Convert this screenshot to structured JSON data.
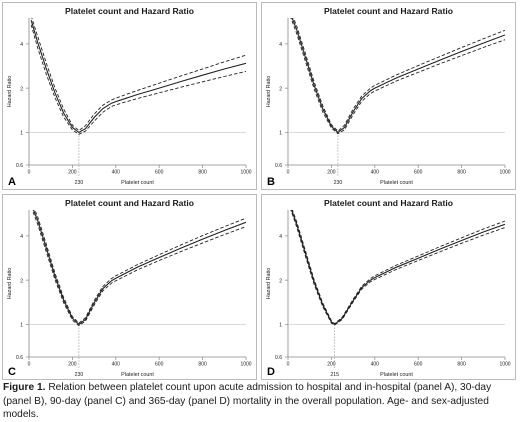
{
  "caption": {
    "label": "Figure 1.",
    "text": "Relation between platelet count upon acute admission to hospital and in-hospital (panel A), 30-day (panel B), 90-day (panel C) and 365-day (panel D) mortality in the overall population. Age- and sex-adjusted models."
  },
  "colors": {
    "curve": "#222222",
    "reference": "#9a9a9a",
    "frame": "#bbbbbb",
    "text": "#1a1a1a"
  },
  "chart_data": [
    {
      "panel": "A",
      "type": "line",
      "title": "Platelet count and Hazard Ratio",
      "xlabel": "Platelet count",
      "ylabel": "Hazard Ratio",
      "x_scale": "linear",
      "y_scale": "log",
      "xlim": [
        0,
        1000
      ],
      "ylim": [
        0.6,
        6
      ],
      "xticks": [
        0,
        200,
        400,
        600,
        800,
        1000
      ],
      "yticks": [
        0.6,
        1,
        2,
        4
      ],
      "optimum_x": 230,
      "optimum_label": "230",
      "reference_hr": 1,
      "series": [
        {
          "role": "estimate",
          "style": "solid",
          "x": [
            10,
            40,
            80,
            120,
            160,
            200,
            230,
            260,
            300,
            340,
            380,
            400,
            500,
            600,
            700,
            800,
            900,
            1000
          ],
          "values": [
            5.8,
            4.1,
            2.7,
            1.85,
            1.35,
            1.08,
            1.0,
            1.06,
            1.26,
            1.45,
            1.58,
            1.62,
            1.81,
            2.0,
            2.22,
            2.45,
            2.7,
            2.95
          ]
        },
        {
          "role": "upper_95ci",
          "style": "dashed",
          "x": [
            10,
            40,
            80,
            120,
            160,
            200,
            230,
            260,
            300,
            340,
            380,
            400,
            500,
            600,
            700,
            800,
            900,
            1000
          ],
          "values": [
            6.2,
            4.5,
            2.95,
            2.0,
            1.44,
            1.12,
            1.03,
            1.11,
            1.33,
            1.53,
            1.66,
            1.71,
            1.93,
            2.16,
            2.42,
            2.7,
            3.02,
            3.35
          ]
        },
        {
          "role": "lower_95ci",
          "style": "dashed",
          "x": [
            10,
            40,
            80,
            120,
            160,
            200,
            230,
            260,
            300,
            340,
            380,
            400,
            500,
            600,
            700,
            800,
            900,
            1000
          ],
          "values": [
            5.4,
            3.75,
            2.48,
            1.72,
            1.27,
            1.04,
            0.97,
            1.02,
            1.19,
            1.37,
            1.5,
            1.54,
            1.7,
            1.86,
            2.03,
            2.21,
            2.4,
            2.6
          ]
        }
      ]
    },
    {
      "panel": "B",
      "type": "line",
      "title": "Platelet count and Hazard Ratio",
      "xlabel": "Platelet count",
      "ylabel": "Hazard Ratio",
      "x_scale": "linear",
      "y_scale": "log",
      "xlim": [
        0,
        1000
      ],
      "ylim": [
        0.6,
        6
      ],
      "xticks": [
        0,
        200,
        400,
        600,
        800,
        1000
      ],
      "yticks": [
        0.6,
        1,
        2,
        4
      ],
      "optimum_x": 230,
      "optimum_label": "230",
      "reference_hr": 1,
      "series": [
        {
          "role": "estimate",
          "style": "solid",
          "x": [
            10,
            40,
            80,
            120,
            160,
            200,
            230,
            260,
            300,
            340,
            380,
            400,
            500,
            600,
            700,
            800,
            900,
            1000
          ],
          "values": [
            6.5,
            5.0,
            3.25,
            2.1,
            1.45,
            1.1,
            1.0,
            1.08,
            1.38,
            1.7,
            1.92,
            2.0,
            2.35,
            2.7,
            3.1,
            3.55,
            4.05,
            4.6
          ]
        },
        {
          "role": "upper_95ci",
          "style": "dashed",
          "x": [
            10,
            40,
            80,
            120,
            160,
            200,
            230,
            260,
            300,
            340,
            380,
            400,
            500,
            600,
            700,
            800,
            900,
            1000
          ],
          "values": [
            6.8,
            5.3,
            3.45,
            2.22,
            1.52,
            1.13,
            1.02,
            1.12,
            1.44,
            1.77,
            2.0,
            2.09,
            2.46,
            2.85,
            3.28,
            3.78,
            4.33,
            4.95
          ]
        },
        {
          "role": "lower_95ci",
          "style": "dashed",
          "x": [
            10,
            40,
            80,
            120,
            160,
            200,
            230,
            260,
            300,
            340,
            380,
            400,
            500,
            600,
            700,
            800,
            900,
            1000
          ],
          "values": [
            6.2,
            4.7,
            3.05,
            1.98,
            1.38,
            1.07,
            0.98,
            1.04,
            1.32,
            1.63,
            1.84,
            1.91,
            2.24,
            2.56,
            2.93,
            3.33,
            3.78,
            4.27
          ]
        }
      ]
    },
    {
      "panel": "C",
      "type": "line",
      "title": "Platelet count and Hazard Ratio",
      "xlabel": "Platelet count",
      "ylabel": "Hazard Ratio",
      "x_scale": "linear",
      "y_scale": "log",
      "xlim": [
        0,
        1000
      ],
      "ylim": [
        0.6,
        6
      ],
      "xticks": [
        0,
        200,
        400,
        600,
        800,
        1000
      ],
      "yticks": [
        0.6,
        1,
        2,
        4
      ],
      "optimum_x": 230,
      "optimum_label": "230",
      "reference_hr": 1,
      "series": [
        {
          "role": "estimate",
          "style": "solid",
          "x": [
            10,
            40,
            80,
            120,
            160,
            200,
            230,
            260,
            300,
            340,
            380,
            400,
            500,
            600,
            700,
            800,
            900,
            1000
          ],
          "values": [
            6.6,
            5.1,
            3.3,
            2.12,
            1.46,
            1.1,
            1.0,
            1.08,
            1.4,
            1.75,
            1.98,
            2.06,
            2.45,
            2.85,
            3.3,
            3.8,
            4.35,
            4.95
          ]
        },
        {
          "role": "upper_95ci",
          "style": "dashed",
          "x": [
            10,
            40,
            80,
            120,
            160,
            200,
            230,
            260,
            300,
            340,
            380,
            400,
            500,
            600,
            700,
            800,
            900,
            1000
          ],
          "values": [
            6.9,
            5.4,
            3.5,
            2.23,
            1.52,
            1.13,
            1.02,
            1.11,
            1.45,
            1.81,
            2.05,
            2.14,
            2.55,
            2.98,
            3.47,
            4.02,
            4.62,
            5.28
          ]
        },
        {
          "role": "lower_95ci",
          "style": "dashed",
          "x": [
            10,
            40,
            80,
            120,
            160,
            200,
            230,
            260,
            300,
            340,
            380,
            400,
            500,
            600,
            700,
            800,
            900,
            1000
          ],
          "values": [
            6.3,
            4.8,
            3.1,
            2.01,
            1.4,
            1.07,
            0.98,
            1.05,
            1.35,
            1.69,
            1.91,
            1.98,
            2.35,
            2.72,
            3.13,
            3.58,
            4.08,
            4.63
          ]
        }
      ]
    },
    {
      "panel": "D",
      "type": "line",
      "title": "Platelet count and Hazard Ratio",
      "xlabel": "Platelet count",
      "ylabel": "Hazard Ratio",
      "x_scale": "linear",
      "y_scale": "log",
      "xlim": [
        0,
        1000
      ],
      "ylim": [
        0.6,
        6
      ],
      "xticks": [
        0,
        200,
        400,
        600,
        800,
        1000
      ],
      "yticks": [
        0.6,
        1,
        2,
        4
      ],
      "optimum_x": 215,
      "optimum_label": "215",
      "reference_hr": 1,
      "series": [
        {
          "role": "estimate",
          "style": "solid",
          "x": [
            10,
            40,
            80,
            120,
            160,
            200,
            215,
            250,
            300,
            340,
            380,
            400,
            500,
            600,
            700,
            800,
            900,
            1000
          ],
          "values": [
            6.4,
            4.8,
            3.05,
            1.95,
            1.36,
            1.04,
            1.0,
            1.1,
            1.45,
            1.78,
            2.0,
            2.08,
            2.45,
            2.82,
            3.25,
            3.72,
            4.25,
            4.8
          ]
        },
        {
          "role": "upper_95ci",
          "style": "dashed",
          "x": [
            10,
            40,
            80,
            120,
            160,
            200,
            215,
            250,
            300,
            340,
            380,
            400,
            500,
            600,
            700,
            800,
            900,
            1000
          ],
          "values": [
            6.6,
            5.0,
            3.18,
            2.02,
            1.4,
            1.06,
            1.01,
            1.12,
            1.48,
            1.82,
            2.05,
            2.14,
            2.53,
            2.92,
            3.38,
            3.88,
            4.45,
            5.05
          ]
        },
        {
          "role": "lower_95ci",
          "style": "dashed",
          "x": [
            10,
            40,
            80,
            120,
            160,
            200,
            215,
            250,
            300,
            340,
            380,
            400,
            500,
            600,
            700,
            800,
            900,
            1000
          ],
          "values": [
            6.2,
            4.6,
            2.92,
            1.88,
            1.32,
            1.02,
            0.99,
            1.08,
            1.42,
            1.74,
            1.95,
            2.02,
            2.37,
            2.72,
            3.12,
            3.56,
            4.05,
            4.56
          ]
        }
      ]
    }
  ]
}
